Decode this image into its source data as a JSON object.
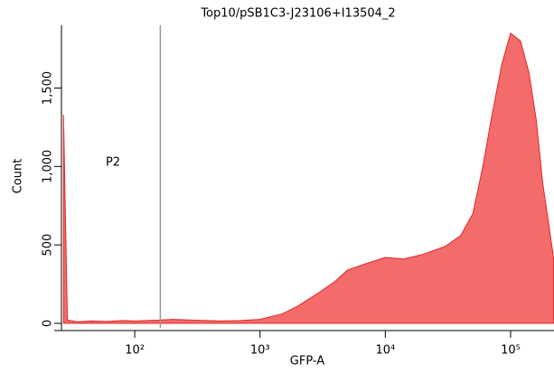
{
  "chart_data": {
    "type": "area",
    "title": "Top10/pSB1C3-J23106+I13504_2",
    "x_label": "GFP-A",
    "y_label": "Count",
    "x": [
      27,
      29,
      35,
      45,
      60,
      80,
      100,
      150,
      200,
      300,
      500,
      700,
      1000,
      1500,
      2000,
      3000,
      4000,
      5000,
      7000,
      10000,
      14000,
      20000,
      30000,
      40000,
      50000,
      60000,
      70000,
      85000,
      100000,
      120000,
      140000,
      160000,
      180000,
      200000,
      220000
    ],
    "series": [
      {
        "name": "Count",
        "color": "#f46b6b",
        "values": [
          1330,
          20,
          10,
          15,
          12,
          18,
          15,
          20,
          25,
          20,
          15,
          18,
          25,
          60,
          110,
          200,
          270,
          340,
          380,
          420,
          410,
          440,
          490,
          560,
          700,
          1000,
          1300,
          1650,
          1850,
          1800,
          1600,
          1300,
          900,
          650,
          420
        ]
      }
    ],
    "xlim": [
      26,
      222000
    ],
    "xscale": "log",
    "xticks": [
      {
        "value": 100,
        "label": "10²"
      },
      {
        "value": 1000,
        "label": "10³"
      },
      {
        "value": 10000,
        "label": "10⁴"
      },
      {
        "value": 100000,
        "label": "10⁵"
      }
    ],
    "ylim": [
      0,
      1900
    ],
    "yticks": [
      0,
      500,
      {
        "value": 1000,
        "label": "1,000"
      },
      {
        "value": 1500,
        "label": "1,500"
      }
    ],
    "gate": {
      "label": "P2",
      "x": 160
    }
  }
}
